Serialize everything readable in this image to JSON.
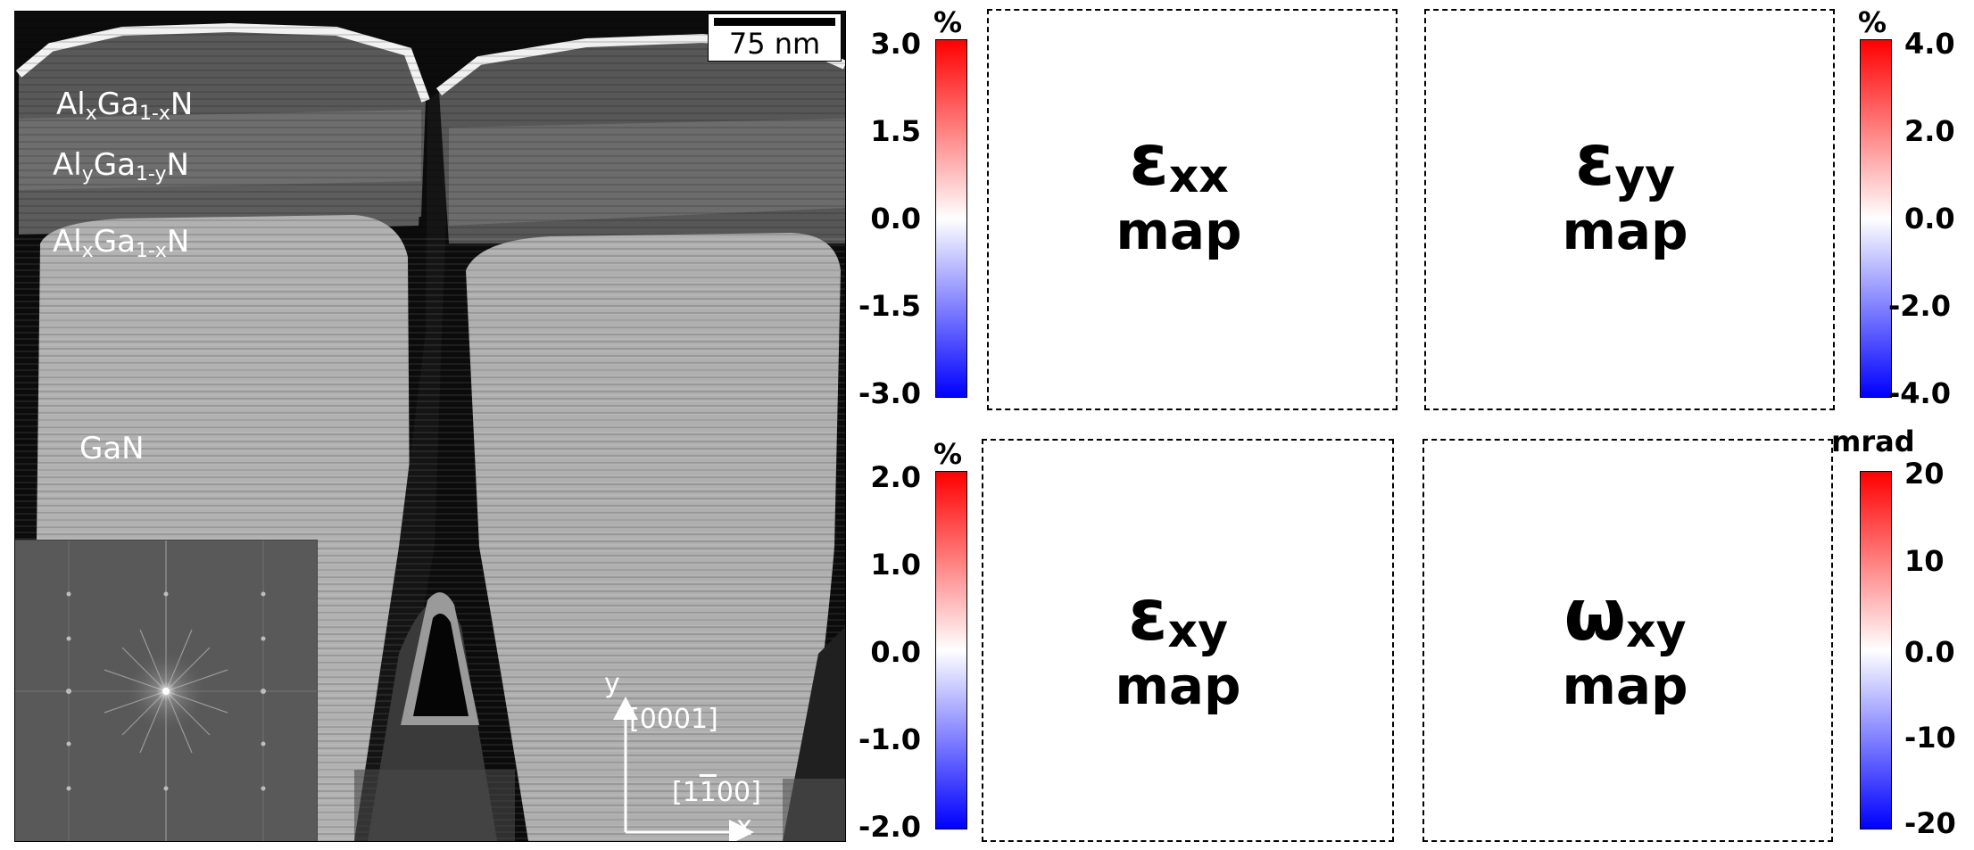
{
  "tem": {
    "scale_bar": "75 nm",
    "layers": [
      {
        "base": "Al",
        "s1": "x",
        "mid": "Ga",
        "s2": "1-x",
        "end": "N"
      },
      {
        "base": "Al",
        "s1": "y",
        "mid": "Ga",
        "s2": "1-y",
        "end": "N"
      },
      {
        "base": "Al",
        "s1": "x",
        "mid": "Ga",
        "s2": "1-x",
        "end": "N"
      }
    ],
    "substrate_label": "GaN",
    "axis_y_label": "y",
    "axis_y_dir": "[0001]",
    "axis_x_label": "x",
    "axis_x_dir_pre": "[1",
    "axis_x_dir_bar": "1",
    "axis_x_dir_post": "00]"
  },
  "maps": {
    "exx": {
      "sym": "ε",
      "sub": "xx",
      "word": "map",
      "unit": "%",
      "ticks": [
        "3.0",
        "1.5",
        "0.0",
        "-1.5",
        "-3.0"
      ]
    },
    "eyy": {
      "sym": "ε",
      "sub": "yy",
      "word": "map",
      "unit": "%",
      "ticks": [
        "4.0",
        "2.0",
        "0.0",
        "-2.0",
        "-4.0"
      ]
    },
    "exy": {
      "sym": "ε",
      "sub": "xy",
      "word": "map",
      "unit": "%",
      "ticks": [
        "2.0",
        "1.0",
        "0.0",
        "-1.0",
        "-2.0"
      ]
    },
    "wxy": {
      "sym": "ω",
      "sub": "xy",
      "word": "map",
      "unit": "mrad",
      "ticks": [
        "20",
        "10",
        "0.0",
        "-10",
        "-20"
      ]
    }
  },
  "colors": {
    "cmap_top": "#ff0000",
    "cmap_mid": "#ffffff",
    "cmap_bottom": "#0000ff"
  }
}
